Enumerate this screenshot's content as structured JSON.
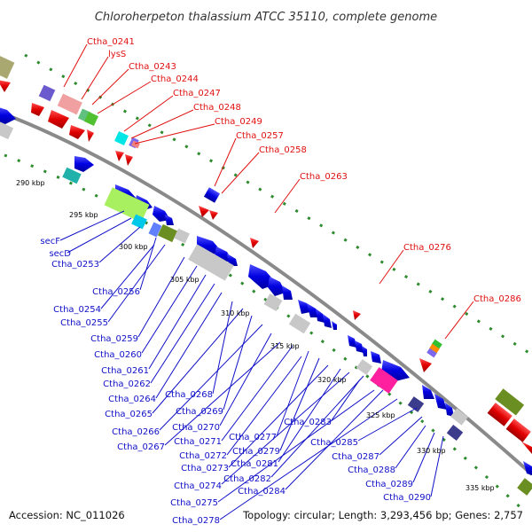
{
  "map": {
    "title": "Chloroherpeton thalassium ATCC 35110, complete genome",
    "accession": "Accession: NC_011026",
    "summary": "Topology: circular; Length: 3,293,456 bp; Genes: 2,757"
  },
  "ticks": [
    "290 kbp",
    "295 kbp",
    "300 kbp",
    "305 kbp",
    "310 kbp",
    "315 kbp",
    "320 kbp",
    "325 kbp",
    "330 kbp",
    "335 kbp"
  ],
  "forward_labels": [
    "Ctha_0241",
    "lysS",
    "Ctha_0243",
    "Ctha_0244",
    "Ctha_0247",
    "Ctha_0248",
    "Ctha_0249",
    "Ctha_0257",
    "Ctha_0258",
    "Ctha_0263",
    "Ctha_0276",
    "Ctha_0286"
  ],
  "reverse_labels": [
    "secF",
    "secD",
    "Ctha_0253",
    "Ctha_0256",
    "Ctha_0254",
    "Ctha_0255",
    "Ctha_0259",
    "Ctha_0260",
    "Ctha_0261",
    "Ctha_0262",
    "Ctha_0264",
    "Ctha_0268",
    "Ctha_0265",
    "Ctha_0269",
    "Ctha_0266",
    "Ctha_0270",
    "Ctha_0267",
    "Ctha_0271",
    "Ctha_0277",
    "Ctha_0272",
    "Ctha_0279",
    "Ctha_0273",
    "Ctha_0281",
    "Ctha_0283",
    "Ctha_0274",
    "Ctha_0282",
    "Ctha_0284",
    "Ctha_0275",
    "Ctha_0278",
    "Ctha_0285",
    "Ctha_0287",
    "Ctha_0288",
    "Ctha_0289",
    "Ctha_0290"
  ],
  "colors": {
    "forward": "#e01010",
    "reverse": "#1010c8",
    "backbone": "#8a8a8a",
    "ticks": "#2e8b2e"
  }
}
